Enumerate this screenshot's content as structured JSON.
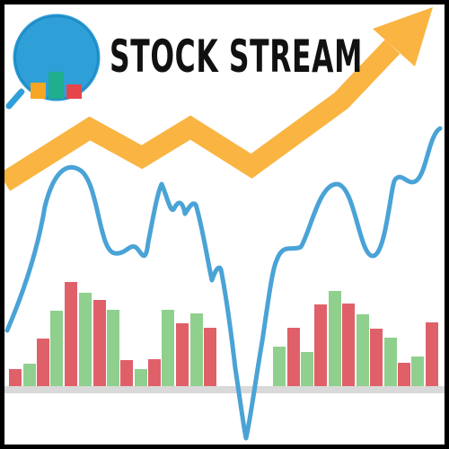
{
  "logo": {
    "title": "STOCK STREAM",
    "ring_color": "#2f9fd8",
    "handle_color": "#2f9fd8",
    "bar_colors": [
      "#f5a623",
      "#1fae8e",
      "#e6464b"
    ],
    "icon": "magnifier-chart-icon"
  },
  "colors": {
    "trend_arrow": "#f9b442",
    "price_line": "#4aa3d6",
    "bar_red": "#e0606a",
    "bar_green": "#8fd08e",
    "baseline": "#d9d9d9"
  }
}
